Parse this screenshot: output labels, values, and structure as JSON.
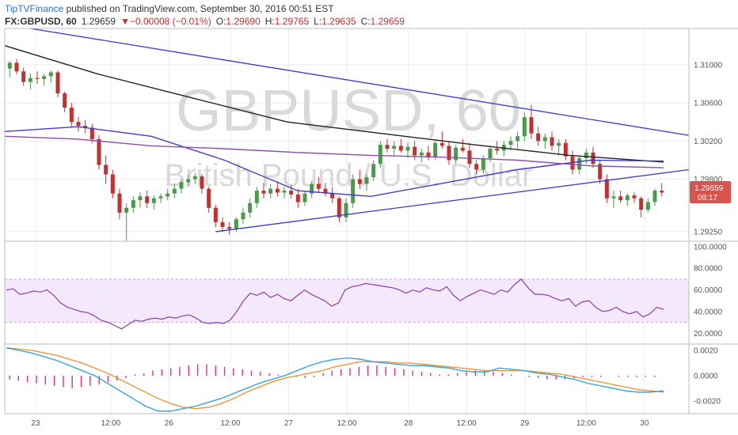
{
  "header": {
    "brand": "TipTVFinance",
    "published_text": " published on TradingView.com, September 30, 2016 00:51 EST",
    "symbol_line": "FX:GBPUSD, 60",
    "last": "1.29659",
    "change": "▼−0.00008 (−0.01%)",
    "o_label": "O:",
    "o_value": "1.29690",
    "h_label": "H:",
    "h_value": "1.29765",
    "l_label": "L:",
    "l_value": "1.29635",
    "c_label": "C:",
    "c_value": "1.29659"
  },
  "watermark": {
    "symbol": "GBPUSD, 60",
    "description": "British Pound / U.S. Dollar"
  },
  "price_badge": {
    "value": "1.29659",
    "countdown": "08:17"
  },
  "colors": {
    "up": "#4a9a4a",
    "down": "#c62f2f",
    "trendline": "#3a3ad1",
    "ma_black": "#222222",
    "ma_blue": "#3f3fc4",
    "ma_purple": "#8a4fa8",
    "rsi": "#8a3fae",
    "rsi_band": "#f4e8fb",
    "macd_line": "#2aa0d8",
    "signal_line": "#f08d2d",
    "histogram": "#e0308a",
    "badge": "#d9534f"
  },
  "chart_data": [
    {
      "type": "candlestick",
      "title": "FX:GBPUSD, 60",
      "y_ticks": [
        "1.31000",
        "1.30600",
        "1.30200",
        "1.29800",
        "1.29250"
      ],
      "ylim": [
        1.2915,
        1.3138
      ],
      "x_ticks": [
        "23",
        "12:00",
        "26",
        "12:00",
        "27",
        "12:00",
        "28",
        "12:00",
        "29",
        "12:00",
        "30"
      ],
      "grid": true,
      "ohlc": [
        [
          1.3096,
          1.3104,
          1.3087,
          1.3102
        ],
        [
          1.3102,
          1.3106,
          1.309,
          1.3093
        ],
        [
          1.3093,
          1.3097,
          1.3078,
          1.3082
        ],
        [
          1.3082,
          1.3091,
          1.3074,
          1.3086
        ],
        [
          1.3086,
          1.3093,
          1.308,
          1.3085
        ],
        [
          1.3085,
          1.309,
          1.3078,
          1.3088
        ],
        [
          1.3088,
          1.3094,
          1.3081,
          1.3092
        ],
        [
          1.3092,
          1.3094,
          1.3066,
          1.307
        ],
        [
          1.307,
          1.3072,
          1.305,
          1.3055
        ],
        [
          1.3055,
          1.306,
          1.3035,
          1.304
        ],
        [
          1.304,
          1.3045,
          1.303,
          1.3036
        ],
        [
          1.3036,
          1.3042,
          1.3028,
          1.3034
        ],
        [
          1.3034,
          1.3038,
          1.3018,
          1.3022
        ],
        [
          1.3022,
          1.3026,
          1.299,
          1.2995
        ],
        [
          1.2995,
          1.3005,
          1.2975,
          1.2985
        ],
        [
          1.2985,
          1.299,
          1.296,
          1.2965
        ],
        [
          1.2965,
          1.297,
          1.2938,
          1.2945
        ],
        [
          1.2945,
          1.2955,
          1.2915,
          1.295
        ],
        [
          1.295,
          1.2962,
          1.2945,
          1.2958
        ],
        [
          1.2958,
          1.2966,
          1.295,
          1.2962
        ],
        [
          1.2962,
          1.2968,
          1.295,
          1.2955
        ],
        [
          1.2955,
          1.2963,
          1.2948,
          1.296
        ],
        [
          1.296,
          1.2965,
          1.2955,
          1.2962
        ],
        [
          1.2962,
          1.297,
          1.2958,
          1.2965
        ],
        [
          1.2965,
          1.2975,
          1.296,
          1.297
        ],
        [
          1.297,
          1.298,
          1.2965,
          1.2977
        ],
        [
          1.2977,
          1.2985,
          1.2972,
          1.298
        ],
        [
          1.298,
          1.2986,
          1.2975,
          1.2983
        ],
        [
          1.2983,
          1.2985,
          1.2965,
          1.297
        ],
        [
          1.297,
          1.2972,
          1.2945,
          1.295
        ],
        [
          1.295,
          1.2953,
          1.293,
          1.2935
        ],
        [
          1.2935,
          1.294,
          1.2925,
          1.293
        ],
        [
          1.293,
          1.2935,
          1.2922,
          1.2928
        ],
        [
          1.2928,
          1.294,
          1.2925,
          1.2938
        ],
        [
          1.2938,
          1.295,
          1.2933,
          1.2945
        ],
        [
          1.2945,
          1.296,
          1.294,
          1.2955
        ],
        [
          1.2955,
          1.2972,
          1.295,
          1.2968
        ],
        [
          1.2968,
          1.2976,
          1.296,
          1.2965
        ],
        [
          1.2965,
          1.2975,
          1.296,
          1.297
        ],
        [
          1.297,
          1.2978,
          1.2962,
          1.2966
        ],
        [
          1.2966,
          1.2972,
          1.296,
          1.2968
        ],
        [
          1.2968,
          1.2974,
          1.296,
          1.2964
        ],
        [
          1.2964,
          1.297,
          1.295,
          1.2956
        ],
        [
          1.2956,
          1.2968,
          1.2952,
          1.2965
        ],
        [
          1.2965,
          1.2978,
          1.296,
          1.2975
        ],
        [
          1.2975,
          1.2982,
          1.2966,
          1.297
        ],
        [
          1.297,
          1.2976,
          1.2962,
          1.2965
        ],
        [
          1.2965,
          1.2972,
          1.2955,
          1.296
        ],
        [
          1.296,
          1.2962,
          1.2935,
          1.294
        ],
        [
          1.294,
          1.296,
          1.2935,
          1.2955
        ],
        [
          1.2955,
          1.2985,
          1.295,
          1.298
        ],
        [
          1.298,
          1.299,
          1.297,
          1.2975
        ],
        [
          1.2975,
          1.2985,
          1.2968,
          1.2982
        ],
        [
          1.2982,
          1.3,
          1.2978,
          1.2996
        ],
        [
          1.2996,
          1.302,
          1.2992,
          1.3016
        ],
        [
          1.3016,
          1.3022,
          1.3008,
          1.3012
        ],
        [
          1.3012,
          1.302,
          1.3005,
          1.3015
        ],
        [
          1.3015,
          1.3022,
          1.3008,
          1.301
        ],
        [
          1.301,
          1.3018,
          1.3002,
          1.3014
        ],
        [
          1.3014,
          1.302,
          1.3,
          1.3005
        ],
        [
          1.3005,
          1.3012,
          1.2998,
          1.3008
        ],
        [
          1.3008,
          1.3015,
          1.3,
          1.3003
        ],
        [
          1.3003,
          1.302,
          1.3,
          1.3018
        ],
        [
          1.3018,
          1.303,
          1.3012,
          1.3015
        ],
        [
          1.3015,
          1.302,
          1.2995,
          1.3
        ],
        [
          1.3,
          1.3016,
          1.2996,
          1.3013
        ],
        [
          1.3013,
          1.3022,
          1.3008,
          1.301
        ],
        [
          1.301,
          1.3018,
          1.2992,
          1.2996
        ],
        [
          1.2996,
          1.3,
          1.2985,
          1.299
        ],
        [
          1.299,
          1.3005,
          1.2986,
          1.3002
        ],
        [
          1.3002,
          1.3015,
          1.2998,
          1.3012
        ],
        [
          1.3012,
          1.302,
          1.3006,
          1.301
        ],
        [
          1.301,
          1.302,
          1.3004,
          1.3016
        ],
        [
          1.3016,
          1.3025,
          1.301,
          1.302
        ],
        [
          1.302,
          1.303,
          1.3012,
          1.3025
        ],
        [
          1.3025,
          1.305,
          1.302,
          1.3045
        ],
        [
          1.3045,
          1.3058,
          1.3022,
          1.3028
        ],
        [
          1.3028,
          1.3035,
          1.3015,
          1.302
        ],
        [
          1.302,
          1.3028,
          1.3012,
          1.3024
        ],
        [
          1.3024,
          1.303,
          1.301,
          1.3015
        ],
        [
          1.3015,
          1.3022,
          1.3005,
          1.3018
        ],
        [
          1.3018,
          1.3022,
          1.3,
          1.3004
        ],
        [
          1.3004,
          1.301,
          1.2985,
          1.299
        ],
        [
          1.299,
          1.3005,
          1.2985,
          1.3002
        ],
        [
          1.3002,
          1.3012,
          1.2996,
          1.3008
        ],
        [
          1.3008,
          1.3014,
          1.2992,
          1.2996
        ],
        [
          1.2996,
          1.3,
          1.2975,
          1.298
        ],
        [
          1.298,
          1.2985,
          1.2955,
          1.296
        ],
        [
          1.296,
          1.2968,
          1.295,
          1.2962
        ],
        [
          1.2962,
          1.2968,
          1.2955,
          1.2958
        ],
        [
          1.2958,
          1.2965,
          1.2952,
          1.2963
        ],
        [
          1.2963,
          1.2966,
          1.2955,
          1.296
        ],
        [
          1.296,
          1.2962,
          1.294,
          1.2948
        ],
        [
          1.2948,
          1.296,
          1.2945,
          1.2956
        ],
        [
          1.2956,
          1.297,
          1.2952,
          1.2968
        ],
        [
          1.2968,
          1.2976,
          1.2962,
          1.2966
        ]
      ],
      "overlays": [
        {
          "name": "",
          "color": "#222222",
          "values": [
            1.312,
            1.309,
            1.3065,
            1.304,
            1.3028,
            1.3016,
            1.3005,
            1.2998
          ]
        },
        {
          "name": "",
          "color": "#3f3fc4",
          "values": [
            1.303,
            1.3035,
            1.3025,
            1.3,
            1.2968,
            1.2962,
            1.2976,
            1.299,
            1.3,
            1.2999
          ]
        },
        {
          "name": "",
          "color": "#8a4fa8",
          "values": [
            1.3025,
            1.3022,
            1.3015,
            1.3012,
            1.3008,
            1.3005,
            1.3003,
            1.3,
            1.2994,
            1.2992
          ]
        }
      ],
      "trendlines": [
        {
          "from": [
            3,
            1.3138
          ],
          "to": [
            96,
            1.3026
          ]
        },
        {
          "from": [
            30,
            1.2925
          ],
          "to": [
            96,
            1.299
          ]
        }
      ]
    },
    {
      "type": "line",
      "title": "RSI",
      "y_ticks": [
        "100.0000",
        "80.0000",
        "60.0000",
        "40.0000",
        "20.0000"
      ],
      "ylim": [
        10,
        105
      ],
      "band": [
        30,
        70
      ],
      "series": [
        {
          "name": "",
          "values": [
            60,
            61,
            56,
            57,
            59,
            58,
            60,
            55,
            48,
            44,
            42,
            40,
            39,
            36,
            32,
            30,
            27,
            24,
            28,
            32,
            31,
            33,
            34,
            33,
            35,
            34,
            36,
            37,
            34,
            30,
            29,
            30,
            29,
            32,
            40,
            50,
            57,
            55,
            58,
            53,
            56,
            52,
            50,
            55,
            60,
            56,
            53,
            50,
            45,
            48,
            60,
            63,
            64,
            66,
            65,
            64,
            63,
            62,
            60,
            57,
            60,
            58,
            62,
            60,
            59,
            63,
            55,
            50,
            54,
            57,
            60,
            58,
            56,
            60,
            58,
            65,
            70,
            62,
            56,
            56,
            55,
            52,
            50,
            52,
            45,
            49,
            50,
            44,
            40,
            41,
            44,
            40,
            38,
            40,
            35,
            38,
            44,
            42
          ]
        }
      ]
    },
    {
      "type": "line",
      "title": "MACD",
      "y_ticks": [
        "0.0020",
        "0.0000",
        "-0.0020"
      ],
      "ylim": [
        -0.003,
        0.0025
      ],
      "series": [
        {
          "name": "",
          "values": [
            0.0022,
            0.002,
            0.0018,
            0.0015,
            0.0012,
            0.0008,
            0.0004,
            0.0,
            -0.0006,
            -0.0012,
            -0.0018,
            -0.0024,
            -0.0028,
            -0.0028,
            -0.0026,
            -0.0024,
            -0.0021,
            -0.0018,
            -0.0014,
            -0.001,
            -0.0006,
            -0.0003,
            0.0,
            0.0004,
            0.0008,
            0.0011,
            0.0013,
            0.0014,
            0.0013,
            0.0011,
            0.001,
            0.0009,
            0.0008,
            0.0008,
            0.0007,
            0.0006,
            0.0004,
            0.0003,
            0.0003,
            0.0006,
            0.0005,
            0.0004,
            0.0002,
            0.0001,
            -0.0001,
            -0.0003,
            -0.0006,
            -0.0008,
            -0.001,
            -0.0012,
            -0.0013,
            -0.0013,
            -0.0012
          ]
        },
        {
          "name": "",
          "values": [
            0.0022,
            0.0021,
            0.002,
            0.0018,
            0.0016,
            0.0013,
            0.001,
            0.0006,
            0.0002,
            -0.0003,
            -0.0008,
            -0.0013,
            -0.0018,
            -0.0022,
            -0.0025,
            -0.0026,
            -0.0025,
            -0.0022,
            -0.0018,
            -0.0013,
            -0.0009,
            -0.0005,
            -0.0002,
            0.0,
            0.0002,
            0.0004,
            0.0007,
            0.0009,
            0.0011,
            0.0011,
            0.0011,
            0.001,
            0.001,
            0.0009,
            0.0008,
            0.0007,
            0.0006,
            0.0005,
            0.0004,
            0.0004,
            0.0004,
            0.0004,
            0.0003,
            0.0002,
            0.0001,
            -0.0001,
            -0.0003,
            -0.0005,
            -0.0007,
            -0.0009,
            -0.0011,
            -0.0012,
            -0.0013
          ]
        },
        {
          "name": "",
          "type": "bar",
          "values": [
            -0.0003,
            -0.0004,
            -0.0005,
            -0.0006,
            -0.0007,
            -0.0008,
            -0.0009,
            -0.001,
            -0.0009,
            -0.0008,
            -0.0007,
            -0.0005,
            -0.0004,
            -0.0002,
            0.0001,
            0.0002,
            0.0004,
            0.0005,
            0.0006,
            0.0007,
            0.0008,
            0.0009,
            0.0009,
            0.0008,
            0.0007,
            0.0006,
            0.0005,
            0.0004,
            0.0003,
            0.0002,
            0.0001,
            0.0,
            -0.0001,
            -0.0002,
            -0.0001,
            0.0002,
            0.0004,
            0.0005,
            0.0006,
            0.0007,
            0.0008,
            0.0008,
            0.0007,
            0.0006,
            0.0005,
            0.0004,
            0.0003,
            0.0002,
            0.0001,
            0.0001,
            0.0002,
            0.0003,
            0.0004,
            0.0004,
            0.0003,
            0.0002,
            0.0001,
            0.0,
            -0.0001,
            -0.0002,
            -0.0003,
            -0.0003,
            -0.0003,
            -0.0002,
            -0.0001,
            -0.0001,
            -0.0001,
            0.0,
            -0.0001,
            -0.0001,
            -0.0001,
            -0.0001,
            -0.0001,
            0.0
          ]
        }
      ]
    }
  ]
}
